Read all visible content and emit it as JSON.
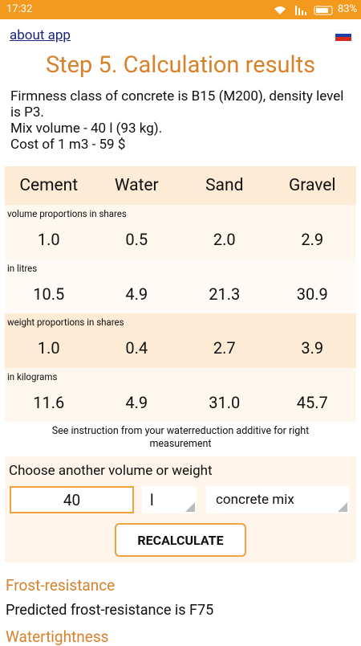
{
  "status_bar": {
    "time": "17:32",
    "battery": "83%"
  },
  "header": {
    "about_link": "about app",
    "title": "Step 5. Calculation results"
  },
  "summary": [
    "Firmness class of concrete is B15 (M200), density level is P3.",
    "Mix volume - 40 l (93 kg).",
    "Cost of 1 m3 - 59 $"
  ],
  "table": {
    "columns": [
      "Cement",
      "Water",
      "Sand",
      "Gravel"
    ],
    "sections": [
      {
        "label": "volume proportions in shares",
        "values": [
          "1.0",
          "0.5",
          "2.0",
          "2.9"
        ]
      },
      {
        "label": "in litres",
        "values": [
          "10.5",
          "4.9",
          "21.3",
          "30.9"
        ]
      },
      {
        "label": "weight proportions in shares",
        "values": [
          "1.0",
          "0.4",
          "2.7",
          "3.9"
        ]
      },
      {
        "label": "in kilograms",
        "values": [
          "11.6",
          "4.9",
          "31.0",
          "45.7"
        ]
      }
    ]
  },
  "note": "See instruction from your waterreduction additive for right measurement",
  "form": {
    "label": "Choose another volume or weight",
    "amount": "40",
    "unit": "l",
    "material": "concrete mix",
    "button": "RECALCULATE"
  },
  "frost": {
    "heading": "Frost-resistance",
    "text": "Predicted frost-resistance is F75"
  },
  "watertightness": {
    "heading": "Watertightness"
  }
}
